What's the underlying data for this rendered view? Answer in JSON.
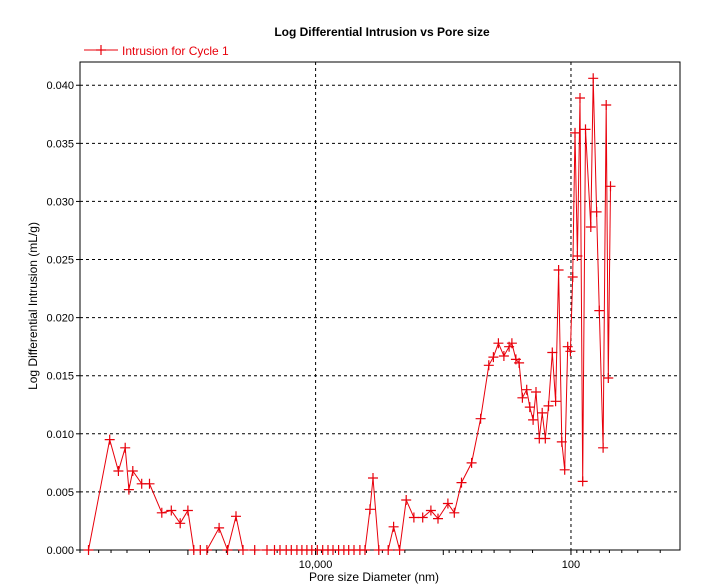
{
  "chart_data": {
    "type": "line",
    "title": "Log Differential Intrusion vs Pore size",
    "xlabel": "Pore size Diameter (nm)",
    "ylabel": "Log Differential Intrusion (mL/g)",
    "x_scale": "log",
    "x_reversed": true,
    "x_range": [
      700000,
      14
    ],
    "xticks": [
      {
        "value": 10000,
        "label": "10,000"
      },
      {
        "value": 100,
        "label": "100"
      }
    ],
    "ylim": [
      0,
      0.042
    ],
    "yticks": [
      {
        "value": 0.0,
        "label": "0.000"
      },
      {
        "value": 0.005,
        "label": "0.005"
      },
      {
        "value": 0.01,
        "label": "0.010"
      },
      {
        "value": 0.015,
        "label": "0.015"
      },
      {
        "value": 0.02,
        "label": "0.020"
      },
      {
        "value": 0.025,
        "label": "0.025"
      },
      {
        "value": 0.03,
        "label": "0.030"
      },
      {
        "value": 0.035,
        "label": "0.035"
      },
      {
        "value": 0.04,
        "label": "0.040"
      }
    ],
    "grid": true,
    "legend_position": "top-left",
    "colors": {
      "series": "#e8000b",
      "grid": "#000000",
      "axis": "#000000"
    },
    "series": [
      {
        "name": "Intrusion for Cycle 1",
        "points": [
          [
            600000,
            0.0
          ],
          [
            410000,
            0.0095
          ],
          [
            350000,
            0.0068
          ],
          [
            310000,
            0.0088
          ],
          [
            290000,
            0.0052
          ],
          [
            270000,
            0.0068
          ],
          [
            230000,
            0.0057
          ],
          [
            200000,
            0.0057
          ],
          [
            160000,
            0.0032
          ],
          [
            135000,
            0.0034
          ],
          [
            115000,
            0.0023
          ],
          [
            100000,
            0.0034
          ],
          [
            90000,
            0.0
          ],
          [
            80000,
            0.0
          ],
          [
            71000,
            0.0
          ],
          [
            57000,
            0.0019
          ],
          [
            49000,
            0.0
          ],
          [
            42000,
            0.0029
          ],
          [
            37000,
            0.0
          ],
          [
            30000,
            0.0
          ],
          [
            24000,
            0.0
          ],
          [
            21000,
            0.0
          ],
          [
            19000,
            0.0
          ],
          [
            17000,
            0.0
          ],
          [
            15500,
            0.0
          ],
          [
            14000,
            0.0
          ],
          [
            12800,
            0.0
          ],
          [
            11700,
            0.0
          ],
          [
            10700,
            0.0
          ],
          [
            9700,
            0.0
          ],
          [
            8800,
            0.0
          ],
          [
            8000,
            0.0
          ],
          [
            7300,
            0.0
          ],
          [
            6600,
            0.0
          ],
          [
            6000,
            0.0
          ],
          [
            5500,
            0.0
          ],
          [
            5000,
            0.0
          ],
          [
            4500,
            0.0
          ],
          [
            4100,
            0.0
          ],
          [
            3750,
            0.0035
          ],
          [
            3550,
            0.0062
          ],
          [
            3200,
            0.0
          ],
          [
            2700,
            0.0
          ],
          [
            2450,
            0.002
          ],
          [
            2200,
            0.0
          ],
          [
            1950,
            0.0043
          ],
          [
            1700,
            0.0028
          ],
          [
            1450,
            0.0028
          ],
          [
            1250,
            0.0034
          ],
          [
            1100,
            0.0027
          ],
          [
            920,
            0.004
          ],
          [
            820,
            0.0032
          ],
          [
            720,
            0.0058
          ],
          [
            600,
            0.0075
          ],
          [
            510,
            0.0113
          ],
          [
            440,
            0.0159
          ],
          [
            405,
            0.0166
          ],
          [
            370,
            0.0178
          ],
          [
            335,
            0.0167
          ],
          [
            305,
            0.0175
          ],
          [
            290,
            0.0178
          ],
          [
            270,
            0.0164
          ],
          [
            255,
            0.0161
          ],
          [
            240,
            0.0131
          ],
          [
            222,
            0.0138
          ],
          [
            210,
            0.0123
          ],
          [
            198,
            0.0112
          ],
          [
            188,
            0.0136
          ],
          [
            177,
            0.0096
          ],
          [
            168,
            0.0118
          ],
          [
            159,
            0.0096
          ],
          [
            150,
            0.0124
          ],
          [
            140,
            0.017
          ],
          [
            132,
            0.0128
          ],
          [
            125,
            0.0241
          ],
          [
            118,
            0.0093
          ],
          [
            112,
            0.0069
          ],
          [
            106,
            0.0175
          ],
          [
            101,
            0.0171
          ],
          [
            97,
            0.0235
          ],
          [
            93,
            0.0359
          ],
          [
            89,
            0.0253
          ],
          [
            85,
            0.0389
          ],
          [
            81,
            0.0059
          ],
          [
            77,
            0.0362
          ],
          [
            70,
            0.0278
          ],
          [
            67,
            0.0406
          ],
          [
            63,
            0.0291
          ],
          [
            60,
            0.0206
          ],
          [
            56,
            0.0088
          ],
          [
            53,
            0.0383
          ],
          [
            51,
            0.0148
          ],
          [
            49,
            0.0313
          ]
        ]
      }
    ]
  }
}
